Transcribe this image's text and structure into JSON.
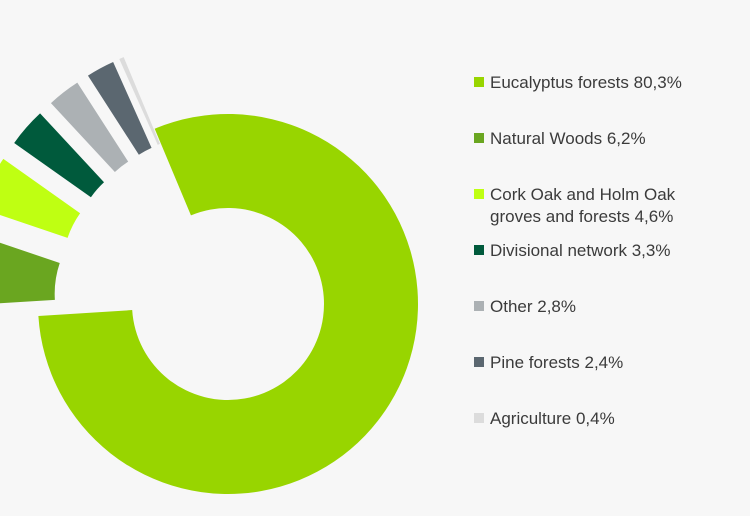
{
  "chart_data": {
    "type": "pie",
    "variant": "donut-exploded",
    "legend_position": "right",
    "slices": [
      {
        "name": "Eucalyptus forests",
        "value": 80.3,
        "label": "Eucalyptus forests 80,3%",
        "color": "#98d500"
      },
      {
        "name": "Natural Woods",
        "value": 6.2,
        "label": "Natural Woods 6,2%",
        "color": "#6aa620"
      },
      {
        "name": "Cork Oak and Holm Oak groves and forests",
        "value": 4.6,
        "label": "Cork Oak and Holm Oak groves and forests 4,6%",
        "color": "#bfff12"
      },
      {
        "name": "Divisional network",
        "value": 3.3,
        "label": "Divisional network 3,3%",
        "color": "#005a3c"
      },
      {
        "name": "Other",
        "value": 2.8,
        "label": "Other 2,8%",
        "color": "#acb1b4"
      },
      {
        "name": "Pine forests",
        "value": 2.4,
        "label": "Pine forests 2,4%",
        "color": "#5b6770"
      },
      {
        "name": "Agriculture",
        "value": 0.4,
        "label": "Agriculture 0,4%",
        "color": "#dcdcdc"
      }
    ]
  }
}
